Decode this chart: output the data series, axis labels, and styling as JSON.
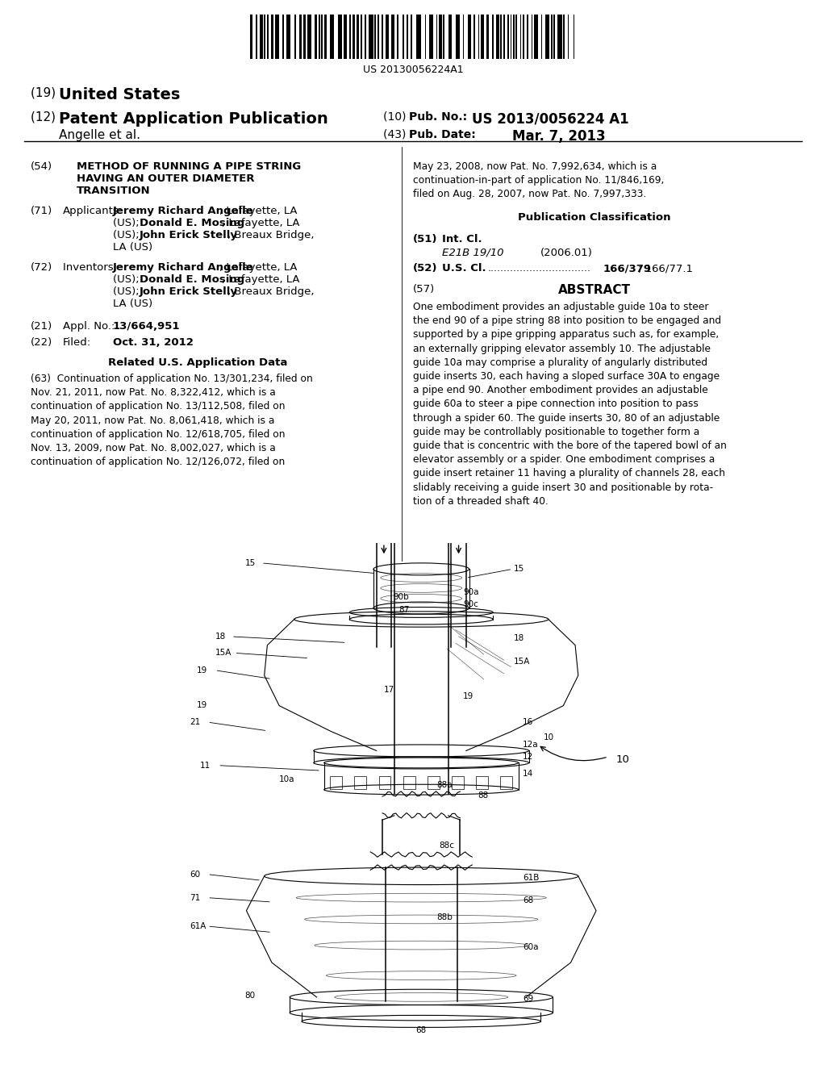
{
  "bg_color": "#ffffff",
  "barcode_text": "US 20130056224A1",
  "patent_number": "US 2013/0056224 A1",
  "pub_date": "Mar. 7, 2013",
  "authors": "Angelle et al.",
  "title_line1": "METHOD OF RUNNING A PIPE STRING",
  "title_line2": "HAVING AN OUTER DIAMETER",
  "title_line3": "TRANSITION",
  "appl_no": "13/664,951",
  "filed_date": "Oct. 31, 2012",
  "cont_text_left": "(63)  Continuation of application No. 13/301,234, filed on\nNov. 21, 2011, now Pat. No. 8,322,412, which is a\ncontinuation of application No. 13/112,508, filed on\nMay 20, 2011, now Pat. No. 8,061,418, which is a\ncontinuation of application No. 12/618,705, filed on\nNov. 13, 2009, now Pat. No. 8,002,027, which is a\ncontinuation of application No. 12/126,072, filed on",
  "cont_text_right": "May 23, 2008, now Pat. No. 7,992,634, which is a\ncontinuation-in-part of application No. 11/846,169,\nfiled on Aug. 28, 2007, now Pat. No. 7,997,333.",
  "int_cl_value": "E21B 19/10",
  "int_cl_year": "(2006.01)",
  "us_cl_value1": "166/379",
  "us_cl_value2": "; 166/77.1",
  "abstract_text": "One embodiment provides an adjustable guide 10a to steer\nthe end 90 of a pipe string 88 into position to be engaged and\nsupported by a pipe gripping apparatus such as, for example,\nan externally gripping elevator assembly 10. The adjustable\nguide 10a may comprise a plurality of angularly distributed\nguide inserts 30, each having a sloped surface 30A to engage\na pipe end 90. Another embodiment provides an adjustable\nguide 60a to steer a pipe connection into position to pass\nthrough a spider 60. The guide inserts 30, 80 of an adjustable\nguide may be controllably positionable to together form a\nguide that is concentric with the bore of the tapered bowl of an\nelevator assembly or a spider. One embodiment comprises a\nguide insert retainer 11 having a plurality of channels 28, each\nslidably receiving a guide insert 30 and positionable by rota-\ntion of a threaded shaft 40."
}
